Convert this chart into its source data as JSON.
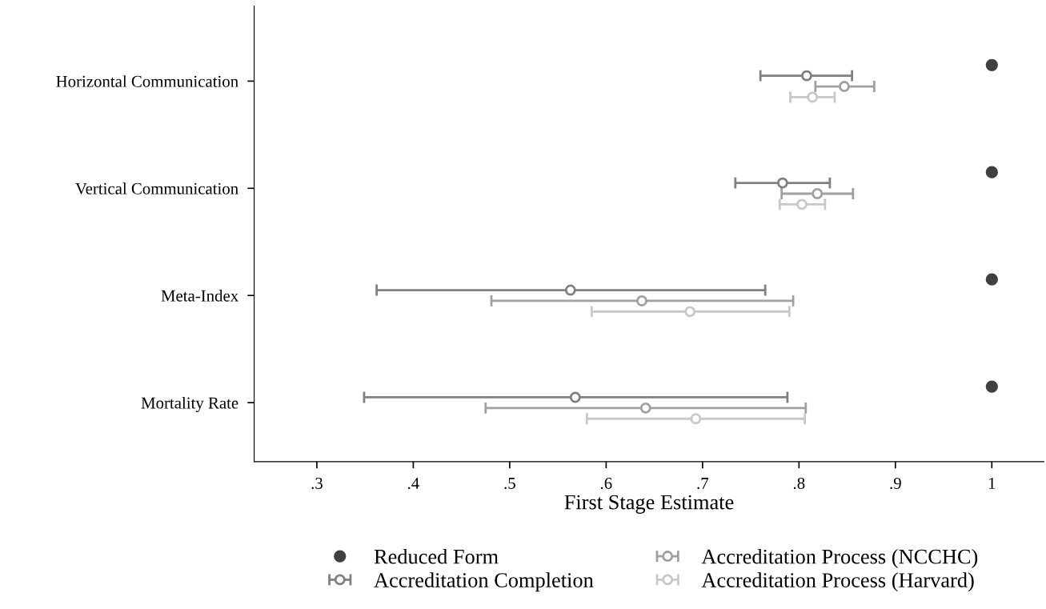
{
  "chart_data": {
    "type": "scatter",
    "orientation": "horizontal",
    "xlabel": "First Stage Estimate",
    "categories": [
      "Horizontal Communication",
      "Vertical Communication",
      "Meta-Index",
      "Mortality Rate"
    ],
    "xlim": [
      0.235,
      1.054
    ],
    "xticks": [
      {
        "value": 0.3,
        "label": ".3"
      },
      {
        "value": 0.4,
        "label": ".4"
      },
      {
        "value": 0.5,
        "label": ".5"
      },
      {
        "value": 0.6,
        "label": ".6"
      },
      {
        "value": 0.7,
        "label": ".7"
      },
      {
        "value": 0.8,
        "label": ".8"
      },
      {
        "value": 0.9,
        "label": ".9"
      },
      {
        "value": 1,
        "label": "1"
      }
    ],
    "marker": "circle",
    "grid": false,
    "legend": "bottom",
    "series": [
      {
        "name": "Reduced Form",
        "color": "#404040",
        "values": [
          1,
          1,
          1,
          1
        ]
      },
      {
        "name": "Accreditation Completion",
        "color": "#808080",
        "values": [
          0.808,
          0.783,
          0.563,
          0.568
        ],
        "errors": [
          [
            0.76,
            0.855
          ],
          [
            0.734,
            0.832
          ],
          [
            0.362,
            0.765
          ],
          [
            0.349,
            0.788
          ]
        ]
      },
      {
        "name": "Accreditation Process (NCCHC)",
        "color": "#a0a0a0",
        "values": [
          0.847,
          0.819,
          0.637,
          0.641
        ],
        "errors": [
          [
            0.817,
            0.878
          ],
          [
            0.782,
            0.856
          ],
          [
            0.481,
            0.794
          ],
          [
            0.475,
            0.807
          ]
        ]
      },
      {
        "name": "Accreditation Process (Harvard)",
        "color": "#c8c8c8",
        "values": [
          0.814,
          0.803,
          0.687,
          0.693
        ],
        "errors": [
          [
            0.791,
            0.837
          ],
          [
            0.78,
            0.827
          ],
          [
            0.585,
            0.79
          ],
          [
            0.58,
            0.806
          ]
        ]
      }
    ]
  }
}
